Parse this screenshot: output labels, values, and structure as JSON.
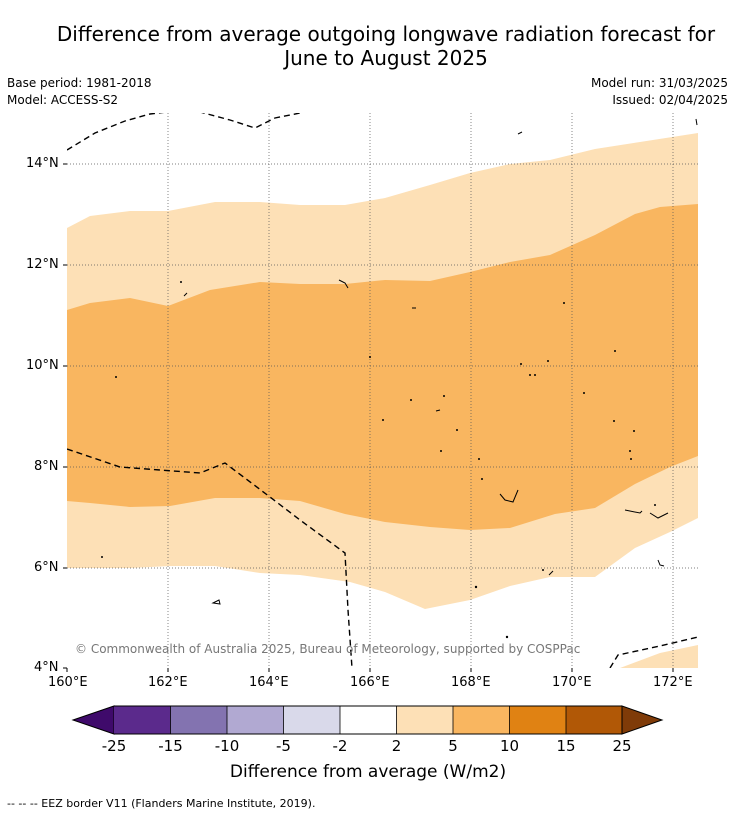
{
  "title_line1": "Difference from average outgoing longwave radiation forecast for",
  "title_line2": "June to August 2025",
  "base_period": "Base period: 1981-2018",
  "model": "Model: ACCESS-S2",
  "model_run": "Model run: 31/03/2025",
  "issued": "Issued: 02/04/2025",
  "copyright": "© Commonwealth of Australia 2025, Bureau of Meteorology, supported by COSPPac",
  "lat_labels": [
    "14°N",
    "12°N",
    "10°N",
    "8°N",
    "6°N",
    "4°N"
  ],
  "lon_labels": [
    "160°E",
    "162°E",
    "164°E",
    "166°E",
    "168°E",
    "170°E",
    "172°E"
  ],
  "colorbar": {
    "title": "Difference from average (W/m2)",
    "tick_labels": [
      "-25",
      "-15",
      "-10",
      "-5",
      "-2",
      "2",
      "5",
      "10",
      "15",
      "25"
    ],
    "colors": [
      "#3f0a6b",
      "#5b2a8c",
      "#8373b0",
      "#b1a9d2",
      "#d9d9ea",
      "#ffffff",
      "#fde0b6",
      "#f9b660",
      "#e08213",
      "#b15806",
      "#7f3b08"
    ]
  },
  "legend_eez": "--  --  -- EEZ border V11 (Flanders Marine Institute, 2019)."
}
